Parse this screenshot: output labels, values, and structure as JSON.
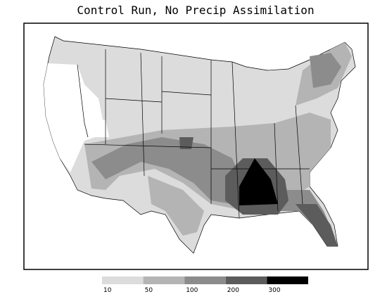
{
  "title": "Control Run, No Precip Assimilation",
  "legend": {
    "levels": [
      10,
      50,
      100,
      200,
      300
    ],
    "colors": [
      "#dcdcdc",
      "#b4b4b4",
      "#8c8c8c",
      "#5c5c5c",
      "#000000"
    ]
  }
}
